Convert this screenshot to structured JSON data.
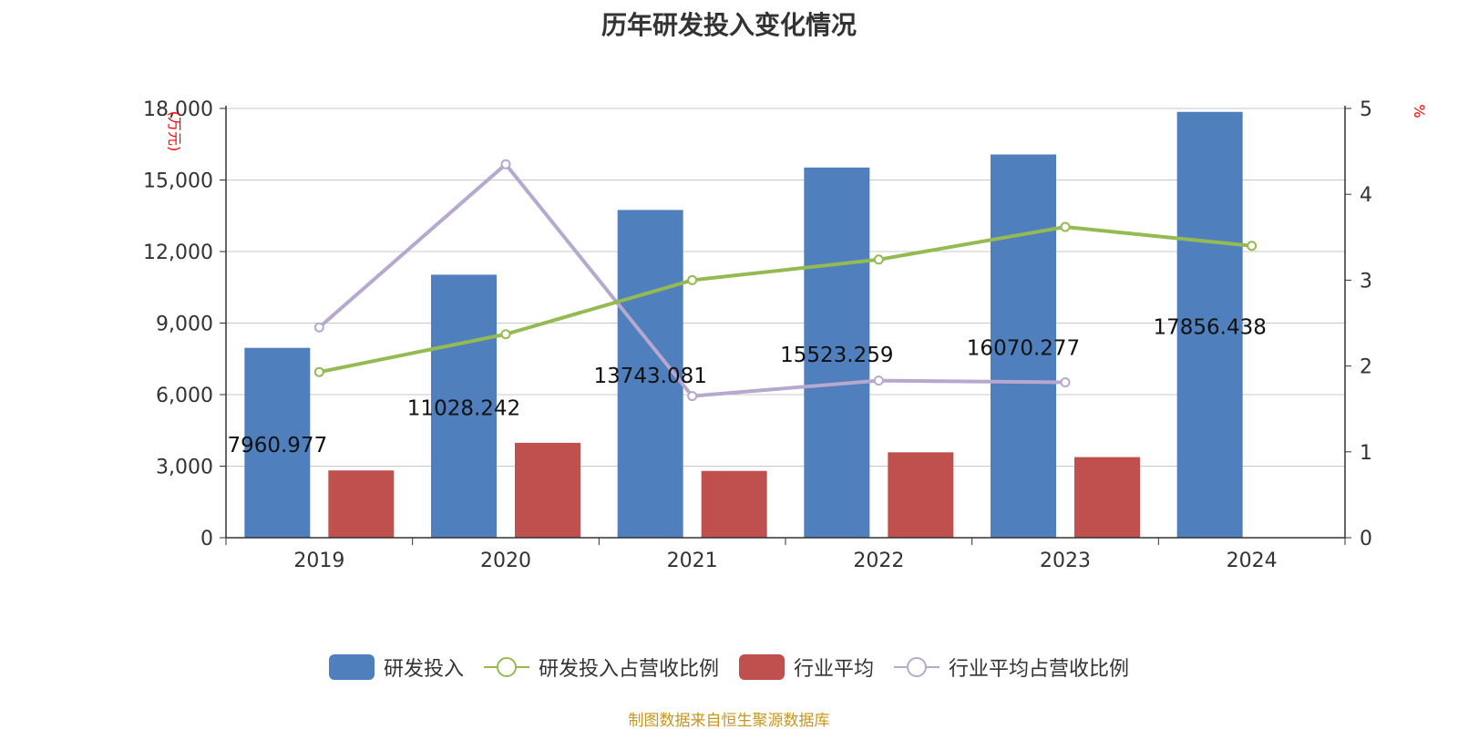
{
  "title": "历年研发投入变化情况",
  "source_note": "制图数据来自恒生聚源数据库",
  "colors": {
    "rd_bar": "#4f7fbd",
    "rd_ratio_line": "#95ba52",
    "industry_bar": "#c0504d",
    "industry_ratio_line": "#b6a8cf",
    "axis_label_red": "#ff0000",
    "grid": "#c8c8c8",
    "text": "#333333"
  },
  "chart_data": {
    "type": "bar",
    "categories": [
      "2019",
      "2020",
      "2021",
      "2022",
      "2023",
      "2024"
    ],
    "y_left": {
      "label": "(万元)",
      "min": 0,
      "max": 18000,
      "ticks": [
        "0",
        "3,000",
        "6,000",
        "9,000",
        "12,000",
        "15,000",
        "18,000"
      ]
    },
    "y_right": {
      "label": "%",
      "min": 0,
      "max": 5,
      "ticks": [
        "0",
        "1",
        "2",
        "3",
        "4",
        "5"
      ]
    },
    "grid": true,
    "legend_position": "bottom",
    "series": [
      {
        "name": "研发投入",
        "kind": "bar",
        "axis": "left",
        "values": [
          7960.977,
          11028.242,
          13743.081,
          15523.259,
          16070.277,
          17856.438
        ],
        "data_labels": [
          "7960.977",
          "11028.242",
          "13743.081",
          "15523.259",
          "16070.277",
          "17856.438"
        ]
      },
      {
        "name": "研发投入占营收比例",
        "kind": "line",
        "axis": "right",
        "values": [
          1.93,
          2.37,
          3.0,
          3.24,
          3.62,
          3.4
        ]
      },
      {
        "name": "行业平均",
        "kind": "bar",
        "axis": "left",
        "values": [
          2820,
          3980,
          2800,
          3580,
          3380,
          null
        ]
      },
      {
        "name": "行业平均占营收比例",
        "kind": "line",
        "axis": "right",
        "values": [
          2.45,
          4.35,
          1.65,
          1.83,
          1.81,
          null
        ]
      }
    ]
  }
}
